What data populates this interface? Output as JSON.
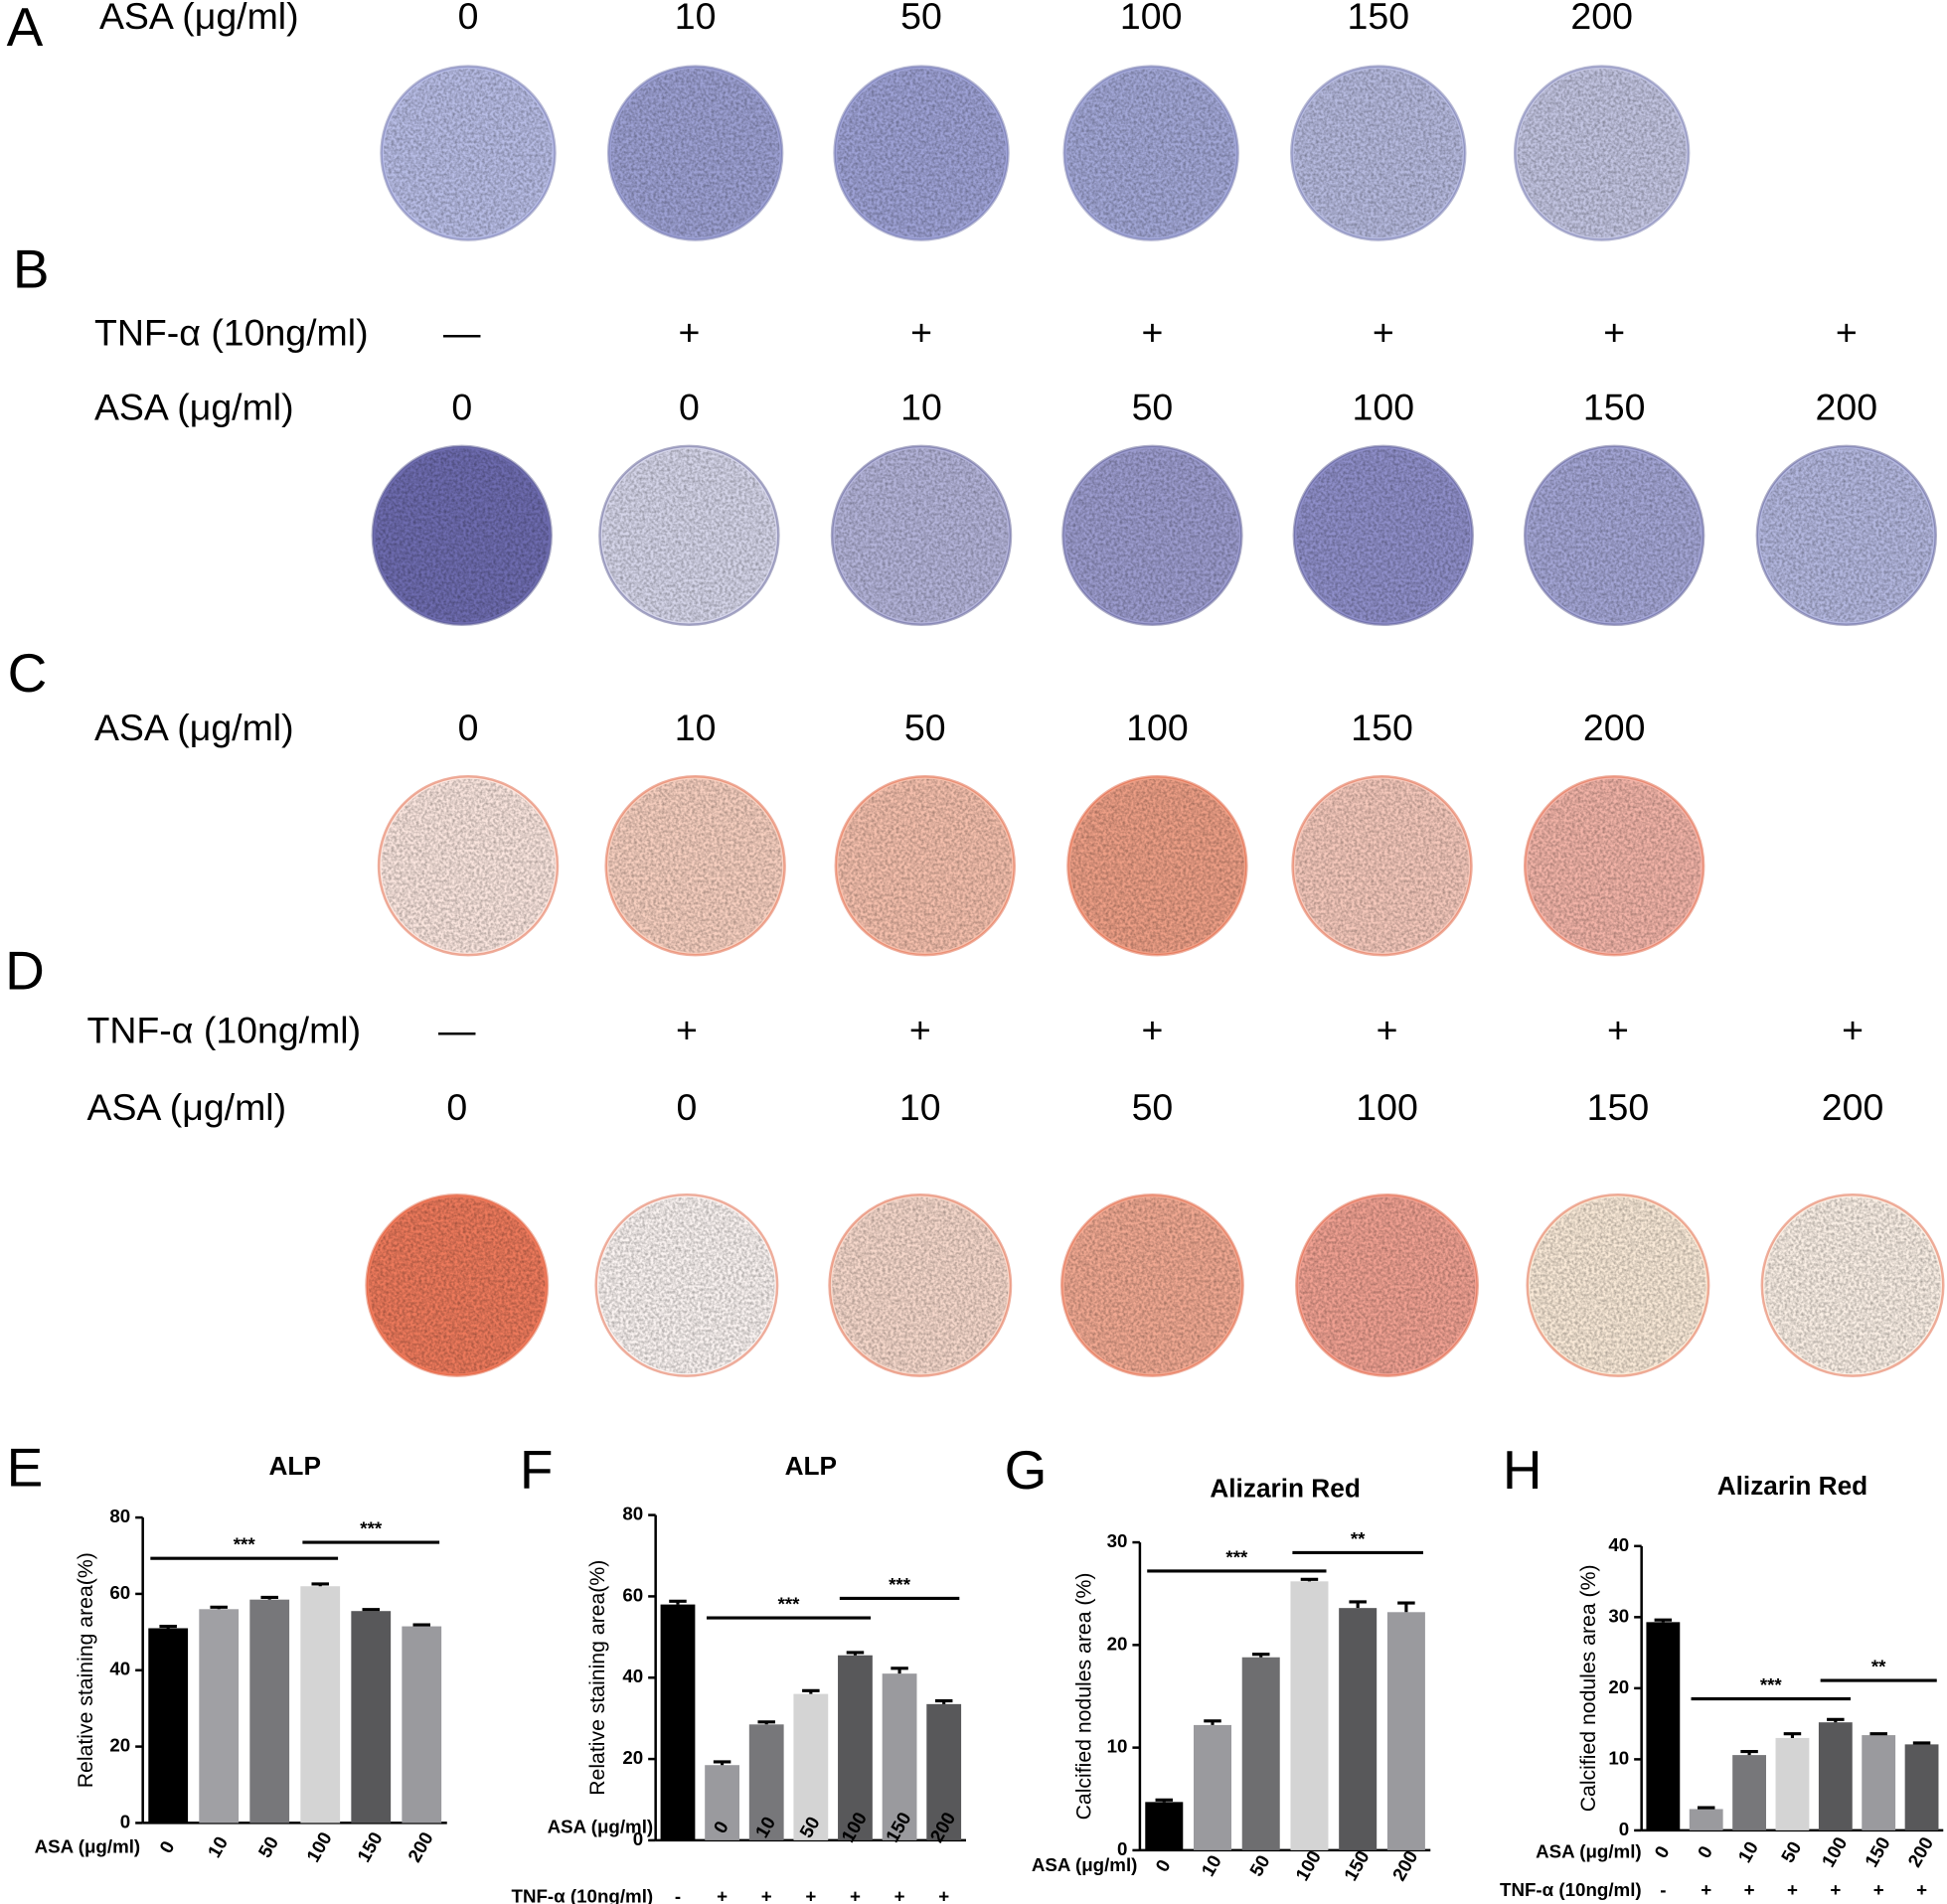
{
  "panels": [
    {
      "letter": "A",
      "rows": [
        {
          "label": "ASA (μg/ml)",
          "values": [
            "0",
            "10",
            "50",
            "100",
            "150",
            "200"
          ]
        }
      ]
    },
    {
      "letter": "B",
      "rows": [
        {
          "label": "TNF-α (10ng/ml)",
          "values": [
            "—",
            "+",
            "+",
            "+",
            "+",
            "+",
            "+"
          ]
        },
        {
          "label": "ASA (μg/ml)",
          "values": [
            "0",
            "0",
            "10",
            "50",
            "100",
            "150",
            "200"
          ]
        }
      ]
    },
    {
      "letter": "C",
      "rows": [
        {
          "label": "ASA (μg/ml)",
          "values": [
            "0",
            "10",
            "50",
            "100",
            "150",
            "200"
          ]
        }
      ]
    },
    {
      "letter": "D",
      "rows": [
        {
          "label": "TNF-α (10ng/ml)",
          "values": [
            "—",
            "+",
            "+",
            "+",
            "+",
            "+",
            "+"
          ]
        },
        {
          "label": "ASA (μg/ml)",
          "values": [
            "0",
            "0",
            "10",
            "50",
            "100",
            "150",
            "200"
          ]
        }
      ]
    }
  ],
  "chart_data": [
    {
      "type": "bar",
      "panel": "E",
      "title": "ALP",
      "y_label": "Relative staining area(%)",
      "x_label": "ASA (μg/ml)",
      "categories": [
        "0",
        "10",
        "50",
        "100",
        "150",
        "200"
      ],
      "values": [
        51,
        56,
        58.5,
        62,
        55.5,
        51.5
      ],
      "errors": [
        0.5,
        0.5,
        0.6,
        0.6,
        0.4,
        0.4
      ],
      "colors": [
        "#000000",
        "#a0a0a4",
        "#77777a",
        "#d4d4d4",
        "#58585a",
        "#9a9a9e"
      ],
      "ylim": [
        0,
        80
      ],
      "yticks": [
        0,
        20,
        40,
        60,
        80
      ],
      "annotations": [
        "***",
        "***"
      ]
    },
    {
      "type": "bar",
      "panel": "F",
      "title": "ALP",
      "y_label": "Relative staining area(%)",
      "x_label": "ASA (μg/ml)",
      "tnf_label": "TNF-α (10ng/ml)",
      "categories": [
        "0",
        "0",
        "10",
        "50",
        "100",
        "150",
        "200"
      ],
      "tnf": [
        "-",
        "+",
        "+",
        "+",
        "+",
        "+",
        "+"
      ],
      "values": [
        58,
        18.5,
        28.5,
        36,
        45.5,
        41,
        33.5
      ],
      "errors": [
        0.8,
        0.8,
        0.6,
        0.8,
        0.7,
        1.3,
        0.8
      ],
      "colors": [
        "#000000",
        "#9a9a9e",
        "#77777a",
        "#d4d4d4",
        "#58585a",
        "#9a9a9e",
        "#58585a"
      ],
      "ylim": [
        0,
        80
      ],
      "yticks": [
        0,
        20,
        40,
        60,
        80
      ],
      "annotations": [
        "***",
        "***"
      ]
    },
    {
      "type": "bar",
      "panel": "G",
      "title": "Alizarin Red",
      "y_label": "Calcified nodules area (%)",
      "x_label": "ASA (μg/ml)",
      "categories": [
        "0",
        "10",
        "50",
        "100",
        "150",
        "200"
      ],
      "values": [
        4.7,
        12.2,
        18.8,
        26.2,
        23.6,
        23.2
      ],
      "errors": [
        0.2,
        0.4,
        0.3,
        0.2,
        0.6,
        0.9
      ],
      "colors": [
        "#000000",
        "#9a9a9e",
        "#6e6e70",
        "#d4d4d4",
        "#58585a",
        "#9a9a9e"
      ],
      "ylim": [
        0,
        30
      ],
      "yticks": [
        0,
        10,
        20,
        30
      ],
      "annotations": [
        "***",
        "**"
      ]
    },
    {
      "type": "bar",
      "panel": "H",
      "title": "Alizarin Red",
      "y_label": "Calcified nodules area (%)",
      "x_label": "ASA (μg/ml)",
      "tnf_label": "TNF-α (10ng/ml)",
      "categories": [
        "0",
        "0",
        "10",
        "50",
        "100",
        "150",
        "200"
      ],
      "tnf": [
        "-",
        "+",
        "+",
        "+",
        "+",
        "+",
        "+"
      ],
      "values": [
        29.3,
        3,
        10.6,
        13,
        15.2,
        13.4,
        12.1
      ],
      "errors": [
        0.3,
        0.2,
        0.5,
        0.6,
        0.4,
        0.2,
        0.2
      ],
      "colors": [
        "#000000",
        "#9a9a9e",
        "#77777a",
        "#d4d4d4",
        "#58585a",
        "#9a9a9e",
        "#58585a"
      ],
      "ylim": [
        0,
        40
      ],
      "yticks": [
        0,
        10,
        20,
        30,
        40
      ],
      "annotations": [
        "***",
        "**"
      ]
    }
  ]
}
